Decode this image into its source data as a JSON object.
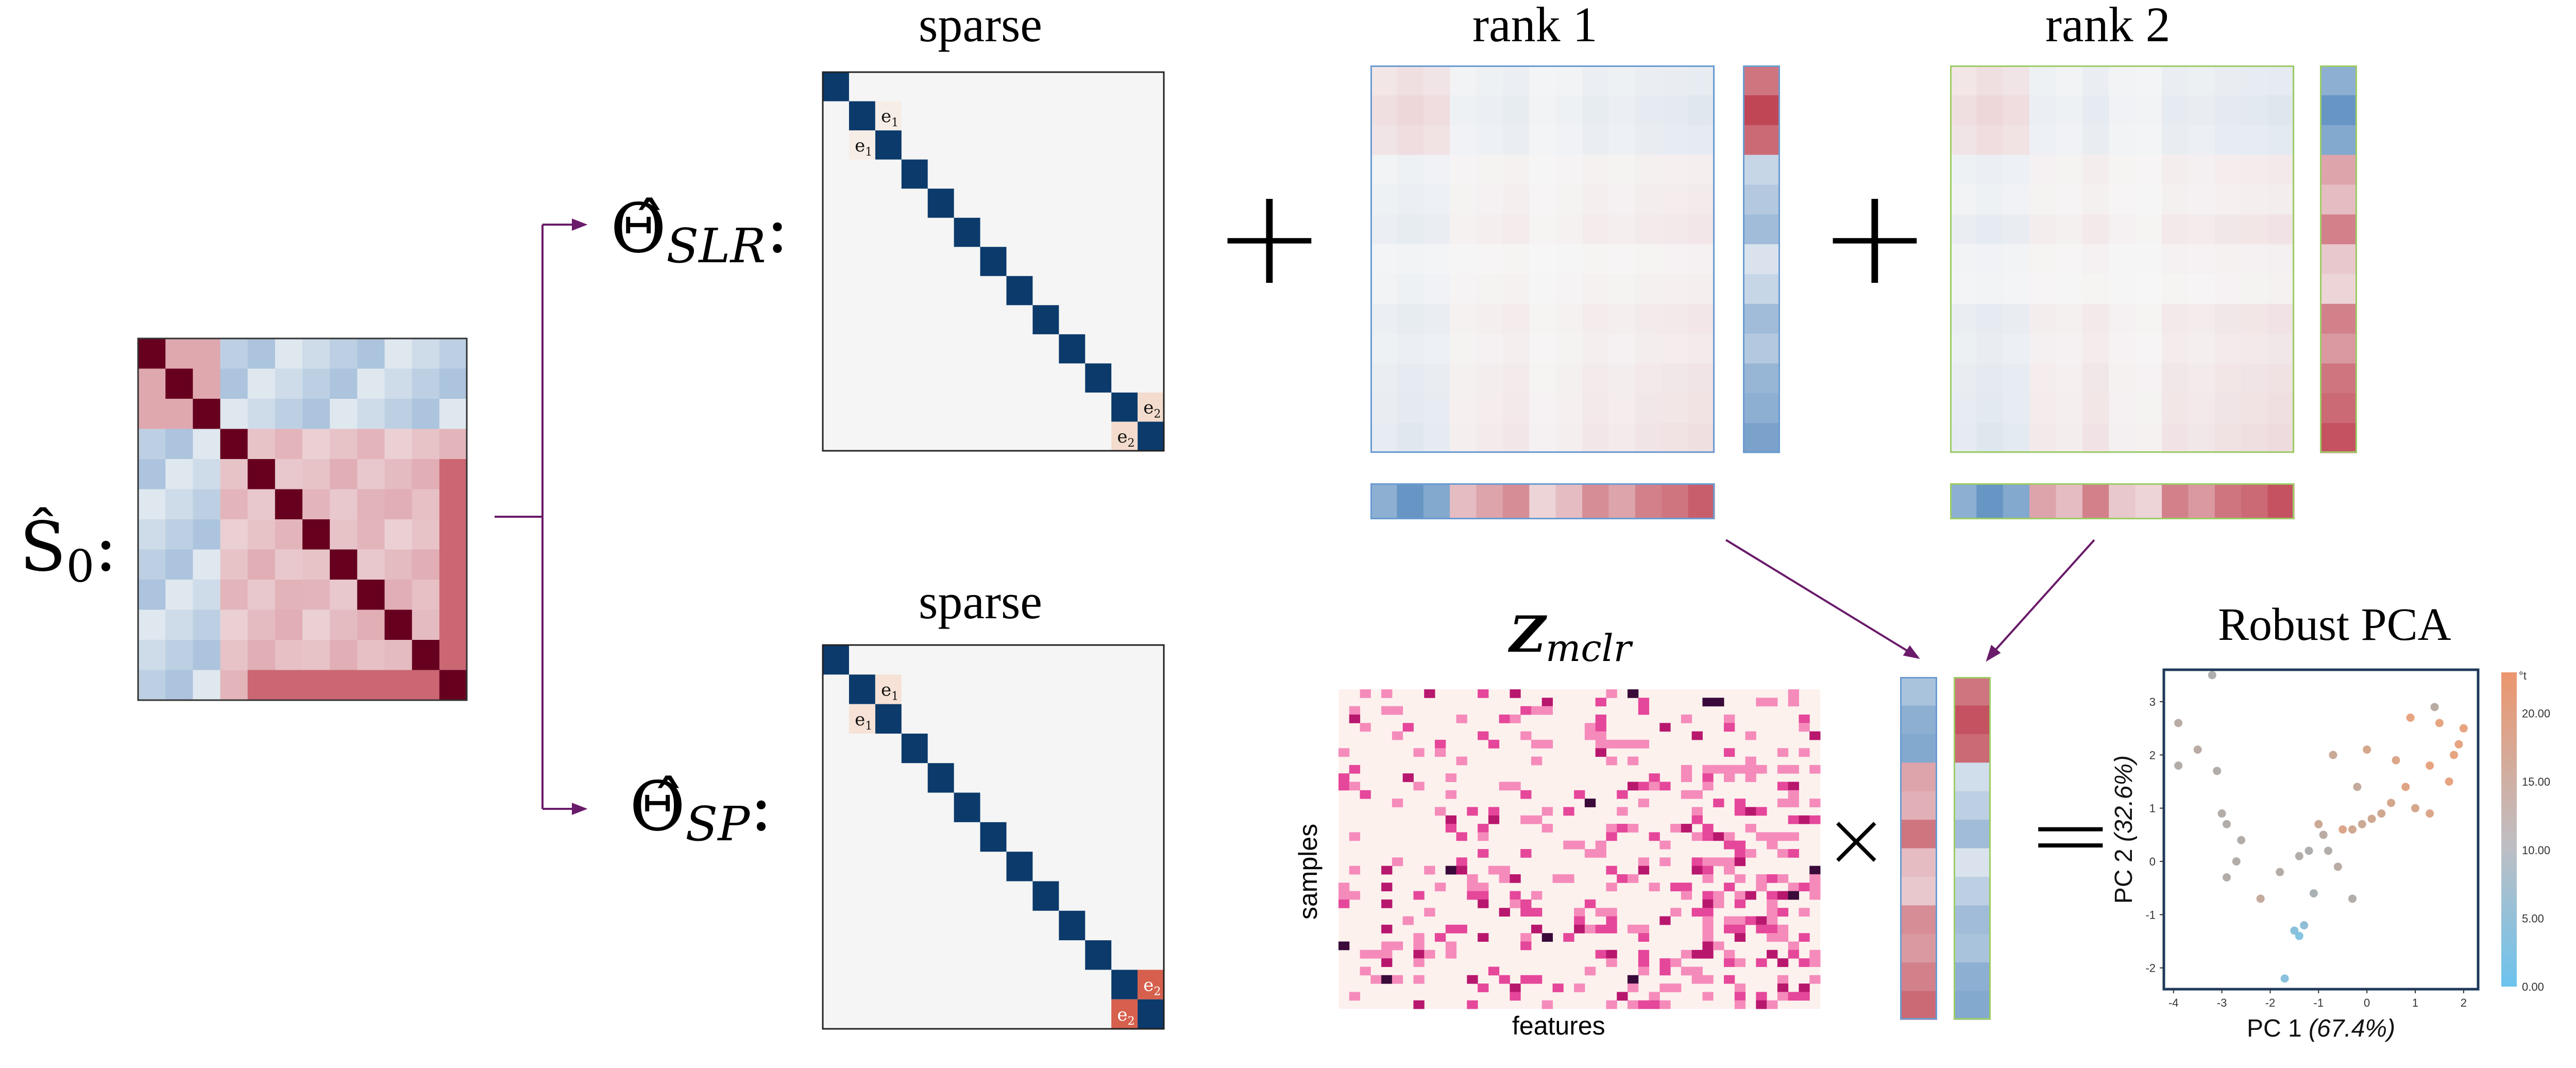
{
  "labels": {
    "s0": "Ŝ",
    "s0_sub": "0",
    "theta_slr": "Θ̂",
    "theta_slr_sub": "SLR",
    "theta_sp": "Θ̂",
    "theta_sp_sub": "SP",
    "colon": ":",
    "sparse_top": "sparse",
    "sparse_bottom": "sparse",
    "rank1": "rank  1",
    "rank2": "rank  2",
    "zmclr": "Z",
    "zmclr_sub": "mclr",
    "samples": "samples",
    "features": "features",
    "robust_pca": "Robust PCA",
    "e1": "e",
    "e1_sub": "1",
    "e2": "e",
    "e2_sub": "2"
  },
  "operators": {
    "plus1": "+",
    "plus2": "+",
    "times": "×",
    "equals": "="
  },
  "colors": {
    "dark_red": "#67001f",
    "navy": "#0b3a6b",
    "purple_arrow": "#6a1b6a",
    "rank1_border": "#6a9bd1",
    "rank2_border": "#9ccc65",
    "pca_border": "#1f3a5a",
    "light_blue_point": "#6cc3ee",
    "orange_point": "#e39a72",
    "gray_point": "#a0a0a0"
  },
  "pca": {
    "x_label": "PC 1",
    "x_pct": "(67.4%)",
    "y_label": "PC 2",
    "y_pct": "(32.6%)",
    "x_ticks": [
      "-4",
      "-3",
      "-2",
      "-1",
      "0",
      "1",
      "2"
    ],
    "y_ticks": [
      "3",
      "2",
      "1",
      "0",
      "-1",
      "-2"
    ],
    "colorbar_title": "°t",
    "colorbar_ticks": [
      "20.00",
      "15.00",
      "10.00",
      "5.00",
      "0.00"
    ],
    "xlim": [
      -4.2,
      2.3
    ],
    "ylim": [
      -2.4,
      3.6
    ],
    "points": [
      [
        -3.9,
        2.6,
        12
      ],
      [
        -3.9,
        1.8,
        11
      ],
      [
        -3.5,
        2.1,
        12
      ],
      [
        -3.2,
        3.5,
        10
      ],
      [
        -3.1,
        1.7,
        11
      ],
      [
        -3.0,
        0.9,
        11
      ],
      [
        -2.9,
        0.7,
        11
      ],
      [
        -2.7,
        0.0,
        11
      ],
      [
        -2.6,
        0.4,
        11
      ],
      [
        -2.2,
        -0.7,
        14
      ],
      [
        -2.9,
        -0.3,
        11
      ],
      [
        -1.4,
        0.1,
        11
      ],
      [
        -1.2,
        0.2,
        10
      ],
      [
        -1.0,
        0.7,
        15
      ],
      [
        -0.9,
        0.5,
        12
      ],
      [
        -0.8,
        0.2,
        11
      ],
      [
        -1.1,
        -0.6,
        9
      ],
      [
        -1.5,
        -1.3,
        3
      ],
      [
        -1.4,
        -1.4,
        2
      ],
      [
        -1.3,
        -1.2,
        4
      ],
      [
        -1.7,
        -2.2,
        3
      ],
      [
        -0.6,
        -0.1,
        12
      ],
      [
        -0.5,
        0.6,
        18
      ],
      [
        -0.3,
        0.6,
        16
      ],
      [
        -0.1,
        0.7,
        15
      ],
      [
        0.1,
        0.8,
        16
      ],
      [
        0.3,
        0.9,
        16
      ],
      [
        0.5,
        1.1,
        17
      ],
      [
        0.0,
        2.1,
        17
      ],
      [
        -0.2,
        1.4,
        14
      ],
      [
        0.6,
        1.9,
        18
      ],
      [
        0.8,
        1.4,
        19
      ],
      [
        -0.7,
        2.0,
        15
      ],
      [
        1.0,
        1.0,
        17
      ],
      [
        1.3,
        1.8,
        20
      ],
      [
        1.7,
        1.5,
        20
      ],
      [
        1.9,
        2.2,
        21
      ],
      [
        1.5,
        2.6,
        22
      ],
      [
        0.9,
        2.7,
        22
      ],
      [
        2.0,
        2.5,
        23
      ],
      [
        1.4,
        2.9,
        12
      ],
      [
        1.3,
        0.9,
        18
      ],
      [
        -1.8,
        -0.2,
        11
      ],
      [
        1.8,
        2.0,
        22
      ],
      [
        -0.3,
        -0.7,
        11
      ]
    ]
  }
}
